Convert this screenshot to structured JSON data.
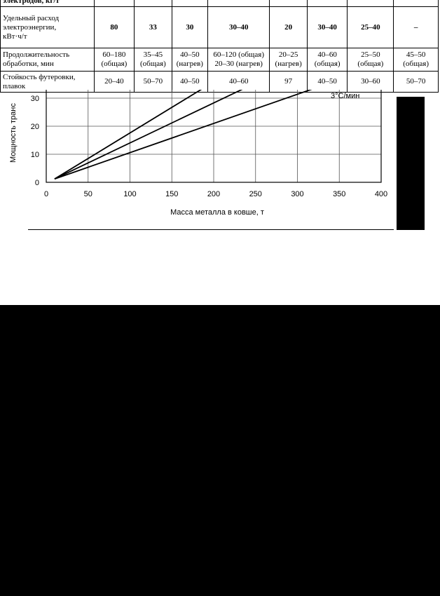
{
  "table": {
    "rows": [
      {
        "label": "электродов, кг/т",
        "cells": [
          "",
          "",
          "",
          "",
          "",
          "",
          "",
          ""
        ]
      },
      {
        "label": "Удельный расход\nэлектроэнергии,\nкВт·ч/т",
        "cells": [
          "80",
          "33",
          "30",
          "30–40",
          "20",
          "30–40",
          "25–40",
          "–"
        ]
      },
      {
        "label": "Продолжительность\nобработки, мин",
        "cells": [
          "60–180\n(общая)",
          "35–45\n(общая)",
          "40–50\n(нагрев)",
          "60–120 (общая)\n20–30 (нагрев)",
          "20–25\n(нагрев)",
          "40–60\n(общая)",
          "25–50\n(общая)",
          "45–50\n(общая)"
        ]
      },
      {
        "label": "Стойкость футеровки,\nплавок",
        "cells": [
          "20–40",
          "50–70",
          "40–50",
          "40–60",
          "97",
          "40–50",
          "30–60",
          "50–70"
        ]
      }
    ]
  },
  "chart_data": {
    "type": "line",
    "xlabel": "Масса металла в ковше, т",
    "ylabel": "Мощность транс",
    "annotation": "3°С/мин",
    "x_ticks": [
      0,
      50,
      100,
      150,
      200,
      250,
      300,
      350,
      400
    ],
    "y_ticks": [
      0,
      10,
      20,
      30
    ],
    "xlim": [
      0,
      400
    ],
    "ylim": [
      0,
      35
    ],
    "grid": true,
    "series": [
      {
        "x": [
          10,
          190
        ],
        "y": [
          1.2,
          34
        ]
      },
      {
        "x": [
          10,
          240
        ],
        "y": [
          1.2,
          34
        ]
      },
      {
        "x": [
          10,
          325
        ],
        "y": [
          1.2,
          34
        ]
      }
    ]
  },
  "colors": {
    "page": "#ffffff",
    "background": "#000000",
    "ink": "#000000"
  }
}
